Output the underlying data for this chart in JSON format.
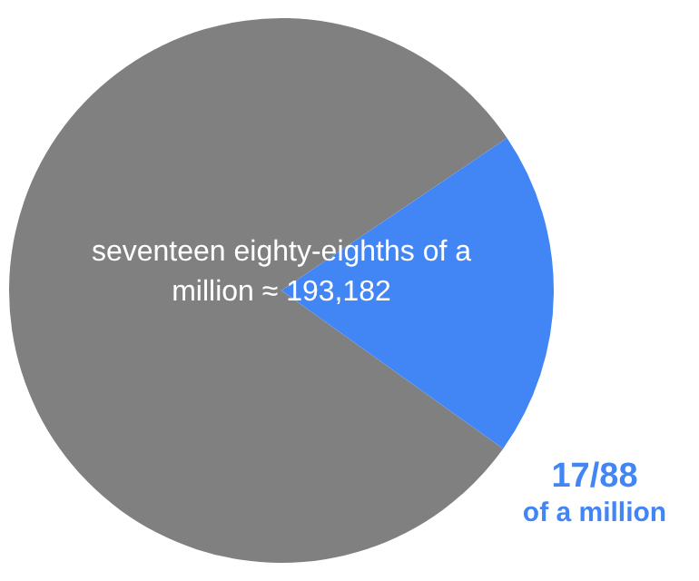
{
  "chart_data": {
    "type": "pie",
    "categories": [
      null,
      "17/88 of a million"
    ],
    "values": [
      80.68,
      19.32
    ],
    "colors": [
      "#808080",
      "#4285f4"
    ],
    "annotations": [
      "seventeen eighty-eighths of a million ≈ 193,182"
    ],
    "legend": false
  }
}
